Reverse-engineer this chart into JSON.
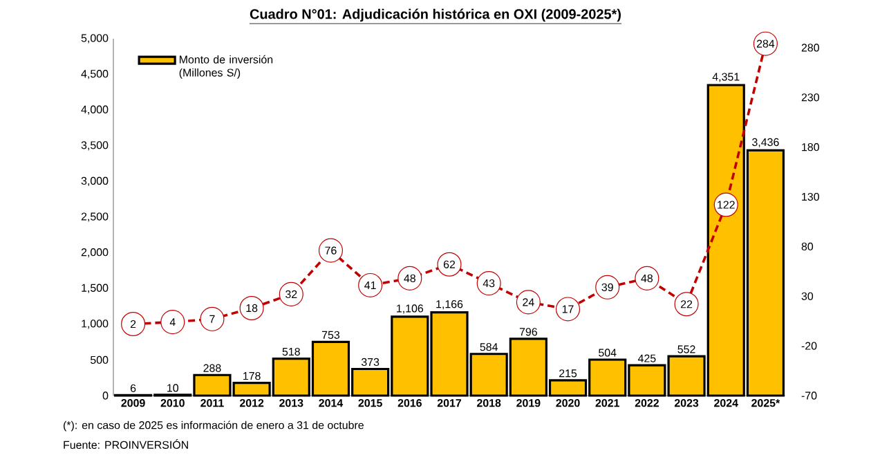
{
  "chart_data": {
    "type": "bar",
    "title": "Cuadro N°01: Adjudicación histórica en OXI (2009-2025*)",
    "categories": [
      "2009",
      "2010",
      "2011",
      "2012",
      "2013",
      "2014",
      "2015",
      "2016",
      "2017",
      "2018",
      "2019",
      "2020",
      "2021",
      "2022",
      "2023",
      "2024",
      "2025*"
    ],
    "series": [
      {
        "name": "Monto de inversión (Millones S/)",
        "color": "#ffc000",
        "values": [
          6,
          10,
          288,
          178,
          518,
          753,
          373,
          1106,
          1166,
          584,
          796,
          215,
          504,
          425,
          552,
          4351,
          3436
        ],
        "value_labels": [
          "6",
          "10",
          "288",
          "178",
          "518",
          "753",
          "373",
          "1,106",
          "1,166",
          "584",
          "796",
          "215",
          "504",
          "425",
          "552",
          "4,351",
          "3,436"
        ]
      },
      {
        "type": "line",
        "axis": "y2",
        "color": "#c00000",
        "line_style": "dashed",
        "marker": "circle",
        "values": [
          2,
          4,
          7,
          18,
          32,
          76,
          41,
          48,
          62,
          43,
          24,
          17,
          39,
          48,
          22,
          122,
          284
        ],
        "value_labels": [
          "2",
          "4",
          "7",
          "18",
          "32",
          "76",
          "41",
          "48",
          "62",
          "43",
          "24",
          "17",
          "39",
          "48",
          "22",
          "122",
          "284"
        ]
      }
    ],
    "ylim": [
      0,
      5000
    ],
    "yticks": [
      0,
      500,
      {
        "value": 1000,
        "label": "1,000"
      },
      {
        "value": 1500,
        "label": "1,500"
      },
      {
        "value": 2000,
        "label": "2,000"
      },
      {
        "value": 2500,
        "label": "2,500"
      },
      {
        "value": 3000,
        "label": "3,000"
      },
      {
        "value": 3500,
        "label": "3,500"
      },
      {
        "value": 4000,
        "label": "4,000"
      },
      {
        "value": 4500,
        "label": "4,500"
      },
      {
        "value": 5000,
        "label": "5,000"
      }
    ],
    "y2lim": [
      -70,
      289
    ],
    "y2ticks": [
      -70,
      -20,
      30,
      80,
      130,
      180,
      230,
      280
    ],
    "legend": "top left",
    "annotations": [
      "(*): en caso de 2025 es información de enero a 31 de octubre",
      "Fuente: PROINVERSIÓN"
    ]
  }
}
